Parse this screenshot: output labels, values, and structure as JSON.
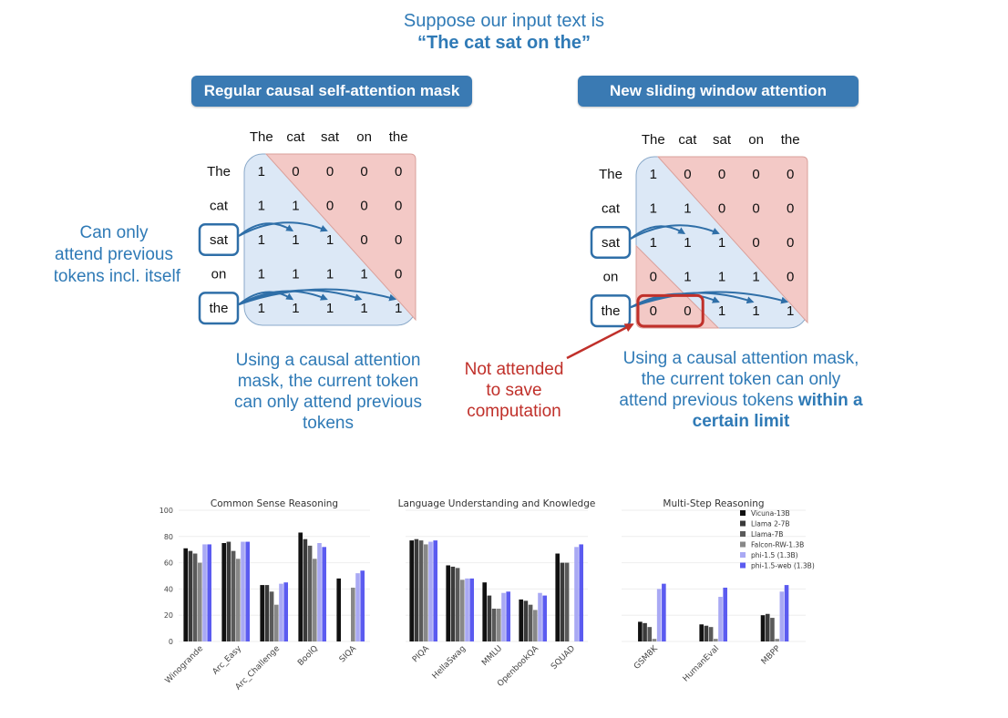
{
  "header": {
    "line1": "Suppose our input text is",
    "line2": "“The cat sat on the”"
  },
  "left_panel": {
    "title": "Regular causal self-attention mask",
    "tokens": [
      "The",
      "cat",
      "sat",
      "on",
      "the"
    ],
    "matrix": [
      [
        1,
        0,
        0,
        0,
        0
      ],
      [
        1,
        1,
        0,
        0,
        0
      ],
      [
        1,
        1,
        1,
        0,
        0
      ],
      [
        1,
        1,
        1,
        1,
        0
      ],
      [
        1,
        1,
        1,
        1,
        1
      ]
    ],
    "side_note": [
      "Can only",
      "attend previous",
      "tokens incl. itself"
    ],
    "caption": [
      "Using a causal attention",
      "mask, the current token",
      "can only attend previous",
      "tokens"
    ]
  },
  "right_panel": {
    "title": "New sliding window attention",
    "tokens": [
      "The",
      "cat",
      "sat",
      "on",
      "the"
    ],
    "matrix": [
      [
        1,
        0,
        0,
        0,
        0
      ],
      [
        1,
        1,
        0,
        0,
        0
      ],
      [
        1,
        1,
        1,
        0,
        0
      ],
      [
        0,
        1,
        1,
        1,
        0
      ],
      [
        0,
        0,
        1,
        1,
        1
      ]
    ],
    "red_note": [
      "Not attended",
      "to save",
      "computation"
    ],
    "caption_plain": [
      "Using a causal attention mask,",
      "the current token can only",
      "attend previous tokens "
    ],
    "caption_bold": [
      "within a",
      "certain limit"
    ]
  },
  "colors": {
    "accent_blue": "#3a7ab3",
    "text_blue": "#2f7ab6",
    "note_red": "#c0302a",
    "attend_fill": "#dce8f6",
    "masked_fill": "#f3c9c6"
  },
  "chart_data": [
    {
      "type": "bar",
      "title": "Common Sense Reasoning",
      "ylim": [
        0,
        100
      ],
      "yticks": [
        0,
        20,
        40,
        60,
        80,
        100
      ],
      "series_names": [
        "Vicuna-13B",
        "Llama 2-7B",
        "Llama-7B",
        "Falcon-RW-1.3B",
        "phi-1.5 (1.3B)",
        "phi-1.5-web (1.3B)"
      ],
      "categories": [
        "Winogrande",
        "Arc_Easy",
        "Arc_Challenge",
        "BoolQ",
        "SIQA"
      ],
      "values": [
        [
          71,
          69,
          67,
          60,
          74,
          74
        ],
        [
          75,
          76,
          69,
          63,
          76,
          76
        ],
        [
          43,
          43,
          38,
          28,
          44,
          45
        ],
        [
          83,
          78,
          73,
          63,
          75,
          72
        ],
        [
          48,
          0,
          0,
          41,
          52,
          54
        ]
      ]
    },
    {
      "type": "bar",
      "title": "Language Understanding and Knowledge",
      "ylim": [
        0,
        100
      ],
      "categories": [
        "PIQA",
        "HellaSwag",
        "MMLU",
        "OpenbookQA",
        "SQUAD"
      ],
      "values": [
        [
          77,
          78,
          77,
          74,
          76,
          77
        ],
        [
          58,
          57,
          56,
          47,
          48,
          48
        ],
        [
          45,
          35,
          25,
          25,
          37,
          38
        ],
        [
          32,
          31,
          28,
          24,
          37,
          35
        ],
        [
          67,
          60,
          60,
          0,
          72,
          74
        ]
      ]
    },
    {
      "type": "bar",
      "title": "Multi-Step Reasoning",
      "ylim": [
        0,
        100
      ],
      "legend_position": "top-right",
      "categories": [
        "GSM8K",
        "HumanEval",
        "MBPP"
      ],
      "values": [
        [
          15,
          14,
          11,
          2,
          40,
          44
        ],
        [
          13,
          12,
          11,
          2,
          34,
          41
        ],
        [
          20,
          21,
          18,
          2,
          38,
          43
        ]
      ],
      "bar_labels": {
        "phi-1.5-web (1.3B)": "phi-1.5-web (1.3B)",
        "phi-1.5 (1.3B)": "phi-1.5 (1.3B)",
        "Llama-7B": "Llama-7B",
        "Llama 2-7B": "Llama 2-7B"
      }
    }
  ]
}
